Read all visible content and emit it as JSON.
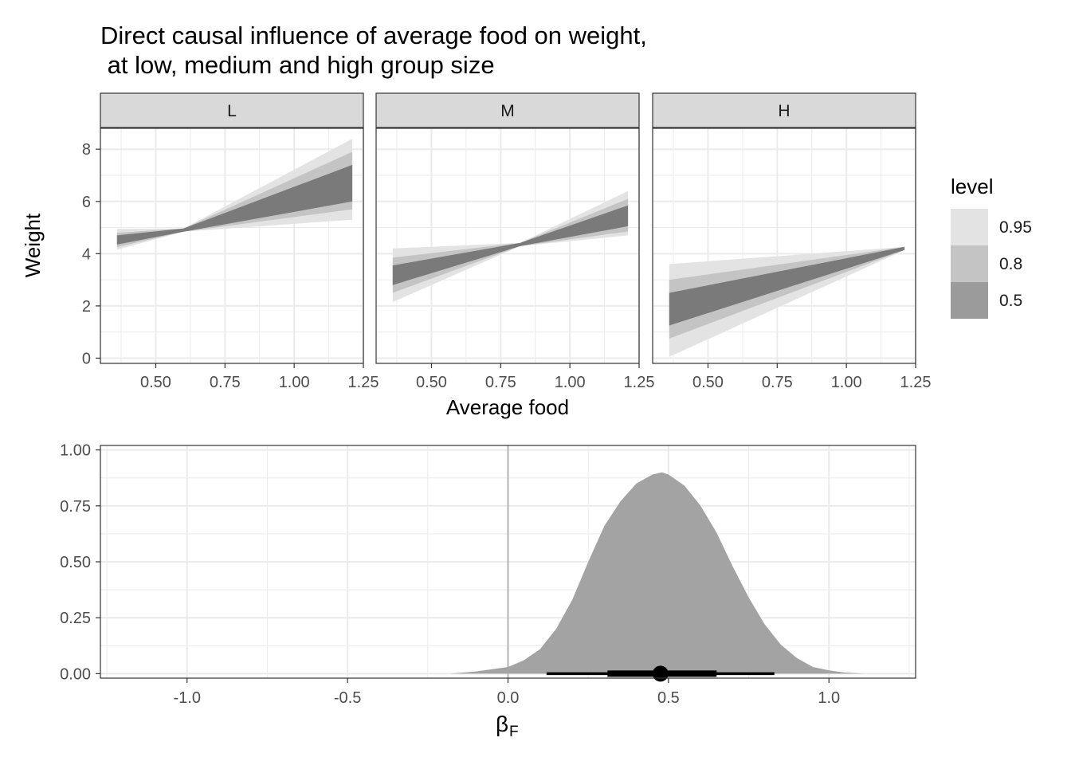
{
  "title_line1": "Direct causal influence of average food on weight,",
  "title_line2": " at low, medium and high group size",
  "colors": {
    "band95": "#e3e3e3",
    "band80": "#c4c4c4",
    "band50": "#7a7a7a",
    "legend50": "#9b9b9b",
    "density": "#a3a3a3",
    "strip": "#d9d9d9",
    "grid": "#ebebeb",
    "interval": "#000000"
  },
  "chart_data": [
    {
      "type": "area",
      "description_of_marks": "lineribbon",
      "panels": [
        "L",
        "M",
        "H"
      ],
      "x": [
        0.36,
        1.21
      ],
      "xlabel": "Average food",
      "ylabel": "Weight",
      "xlim": [
        0.3,
        1.25
      ],
      "ylim": [
        -0.2,
        8.8
      ],
      "xticks": [
        0.5,
        0.75,
        1.0,
        1.25
      ],
      "xtick_labels": [
        "0.50",
        "0.75",
        "1.00",
        "1.25"
      ],
      "yticks": [
        0,
        2,
        4,
        6,
        8
      ],
      "ytick_labels": [
        "0",
        "2",
        "4",
        "6",
        "8"
      ],
      "grid": true,
      "legend": {
        "title": "level",
        "position": "right",
        "entries": [
          {
            "label": "0.95",
            "color": "#e3e3e3"
          },
          {
            "label": "0.8",
            "color": "#c4c4c4"
          },
          {
            "label": "0.5",
            "color": "#9b9b9b"
          }
        ]
      },
      "ribbons": {
        "L": {
          "pivot_x": 0.6,
          "pivot_y": 4.9,
          "left": {
            "0.5": [
              4.35,
              4.7
            ],
            "0.8": [
              4.25,
              4.8
            ],
            "0.95": [
              4.15,
              4.95
            ]
          },
          "right": {
            "0.5": [
              6.0,
              7.4
            ],
            "0.8": [
              5.7,
              7.9
            ],
            "0.95": [
              5.3,
              8.4
            ]
          }
        },
        "M": {
          "pivot_x": 0.82,
          "pivot_y": 4.35,
          "left": {
            "0.5": [
              2.8,
              3.55
            ],
            "0.8": [
              2.5,
              3.85
            ],
            "0.95": [
              2.15,
              4.2
            ]
          },
          "right": {
            "0.5": [
              5.05,
              5.85
            ],
            "0.8": [
              4.85,
              6.1
            ],
            "0.95": [
              4.7,
              6.4
            ]
          }
        },
        "H": {
          "pivot_x": 1.21,
          "pivot_y": 4.2,
          "left": {
            "0.5": [
              1.25,
              2.5
            ],
            "0.8": [
              0.75,
              3.0
            ],
            "0.95": [
              0.05,
              3.6
            ]
          },
          "right": {
            "0.5": [
              3.95,
              4.4
            ],
            "0.8": [
              3.85,
              4.55
            ],
            "0.95": [
              3.7,
              4.75
            ]
          }
        }
      }
    },
    {
      "type": "area",
      "description_of_marks": "halfeye density with point interval",
      "xlabel": "βF",
      "xlabel_main": "β",
      "xlabel_sub": "F",
      "ylabel": "",
      "xlim": [
        -1.27,
        1.27
      ],
      "ylim": [
        -0.02,
        1.02
      ],
      "xticks": [
        -1.0,
        -0.5,
        0.0,
        0.5,
        1.0
      ],
      "xtick_labels": [
        "-1.0",
        "-0.5",
        "0.0",
        "0.5",
        "1.0"
      ],
      "yticks": [
        0,
        0.25,
        0.5,
        0.75,
        1.0
      ],
      "ytick_labels": [
        "0.00",
        "0.25",
        "0.50",
        "0.75",
        "1.00"
      ],
      "reference_line_x": 0,
      "density": {
        "x": [
          -0.18,
          -0.1,
          0.0,
          0.05,
          0.1,
          0.15,
          0.2,
          0.25,
          0.3,
          0.35,
          0.4,
          0.45,
          0.48,
          0.5,
          0.55,
          0.6,
          0.65,
          0.7,
          0.75,
          0.8,
          0.85,
          0.9,
          0.95,
          1.0,
          1.05,
          1.11
        ],
        "y": [
          0.0,
          0.01,
          0.03,
          0.06,
          0.11,
          0.2,
          0.33,
          0.5,
          0.66,
          0.77,
          0.85,
          0.89,
          0.9,
          0.89,
          0.84,
          0.75,
          0.63,
          0.48,
          0.34,
          0.22,
          0.13,
          0.07,
          0.03,
          0.015,
          0.005,
          0.0
        ]
      },
      "point": 0.475,
      "interval_66": [
        0.31,
        0.65
      ],
      "interval_95": [
        0.12,
        0.83
      ]
    }
  ]
}
